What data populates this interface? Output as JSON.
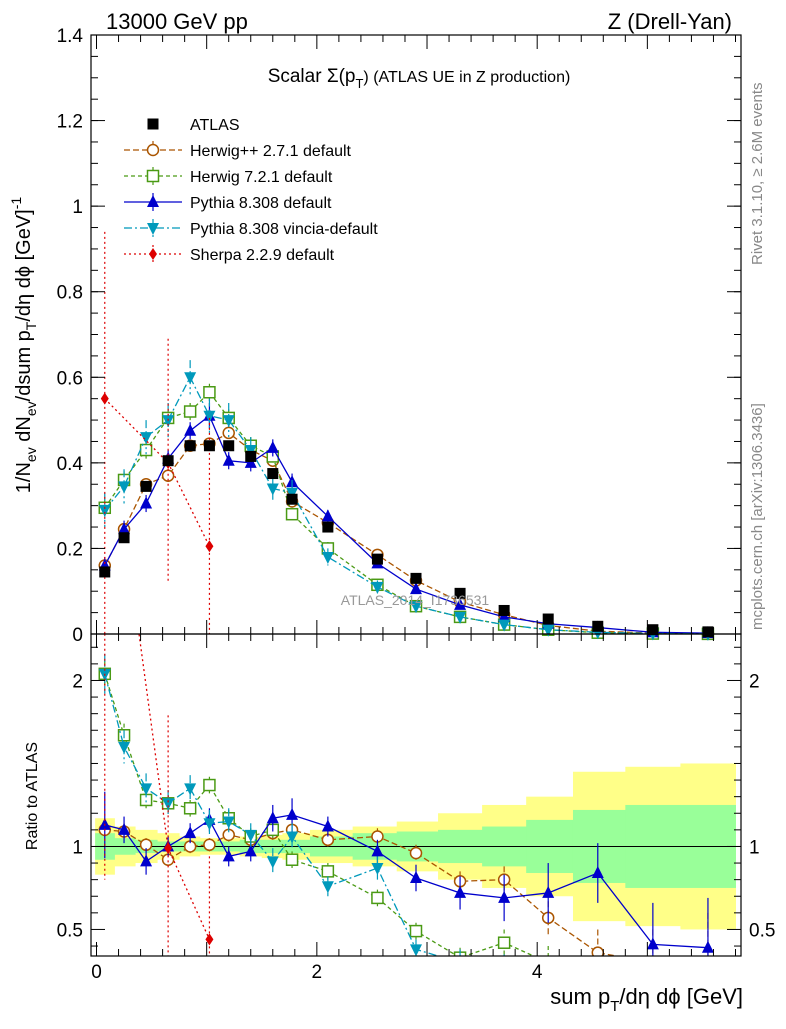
{
  "header": {
    "left": "13000 GeV pp",
    "right": "Z (Drell-Yan)"
  },
  "side_labels": {
    "rivet": "Rivet 3.1.10, ≥ 2.6M events",
    "mcplots": "mcplots.cern.ch [arXiv:1306.3436]"
  },
  "chart_data": {
    "type": "scatter",
    "title": "Scalar Σ(p_T) (ATLAS UE in Z production)",
    "title_parts": {
      "main": "Scalar Σ(p",
      "sub": "T",
      "rest": ") (ATLAS UE in Z production)"
    },
    "watermark": "ATLAS_2014_I1736531",
    "xlabel": "sum p_T/dη dϕ [GeV]",
    "xlabel_parts": {
      "a": "sum p",
      "sub": "T",
      "b": "/dη dϕ [GeV]"
    },
    "ylabel": "1/N_ev dN_ev/dsum p_T/dη dϕ [GeV]^-1",
    "ylabel_parts": {
      "a": "1/N",
      "sub1": "ev",
      "b": " dN",
      "sub2": "ev",
      "c": "/dsum p",
      "sub3": "T",
      "d": "/dη dϕ  [GeV]",
      "sup": "-1"
    },
    "ratio_ylabel": "Ratio to ATLAS",
    "xlim": [
      -0.05,
      5.85
    ],
    "ylim": [
      0,
      1.4
    ],
    "ratio_ylim": [
      0.34,
      2.28
    ],
    "x_ticks": [
      {
        "v": 0,
        "label": "0"
      },
      {
        "v": 2,
        "label": "2"
      },
      {
        "v": 4,
        "label": "4"
      }
    ],
    "y_ticks": [
      {
        "v": 0,
        "label": "0"
      },
      {
        "v": 0.2,
        "label": "0.2"
      },
      {
        "v": 0.4,
        "label": "0.4"
      },
      {
        "v": 0.6,
        "label": "0.6"
      },
      {
        "v": 0.8,
        "label": "0.8"
      },
      {
        "v": 1.0,
        "label": "1"
      },
      {
        "v": 1.2,
        "label": "1.2"
      },
      {
        "v": 1.4,
        "label": "1.4"
      }
    ],
    "ratio_ticks": [
      {
        "v": 0.5,
        "label": "0.5"
      },
      {
        "v": 1,
        "label": "1"
      },
      {
        "v": 2,
        "label": "2"
      }
    ],
    "x": [
      0.075,
      0.25,
      0.45,
      0.65,
      0.85,
      1.025,
      1.2,
      1.4,
      1.6,
      1.775,
      2.1,
      2.55,
      2.9,
      3.3,
      3.7,
      4.1,
      4.55,
      5.05,
      5.55
    ],
    "atlas": {
      "name": "ATLAS",
      "values": [
        0.145,
        0.225,
        0.345,
        0.405,
        0.44,
        0.44,
        0.44,
        0.415,
        0.375,
        0.315,
        0.25,
        0.175,
        0.13,
        0.095,
        0.055,
        0.035,
        0.018,
        0.01,
        0.005
      ],
      "band_inner": [
        0.08,
        0.05,
        0.04,
        0.03,
        0.03,
        0.03,
        0.03,
        0.04,
        0.04,
        0.04,
        0.06,
        0.08,
        0.09,
        0.1,
        0.12,
        0.16,
        0.22,
        0.25,
        0.25
      ],
      "band_outer": [
        0.17,
        0.12,
        0.1,
        0.08,
        0.06,
        0.05,
        0.05,
        0.06,
        0.07,
        0.08,
        0.1,
        0.12,
        0.15,
        0.2,
        0.25,
        0.3,
        0.45,
        0.48,
        0.5
      ]
    },
    "series": [
      {
        "name": "Herwig++ 2.7.1 default",
        "color": "#aa5500",
        "marker": "circle-open",
        "dash": "6,3",
        "values": [
          0.16,
          0.245,
          0.35,
          0.37,
          0.44,
          0.445,
          0.47,
          0.43,
          0.405,
          0.31,
          0.26,
          0.185,
          0.125,
          0.075,
          0.045,
          0.02,
          0.0065,
          0.0022,
          0.0008
        ],
        "ratio": [
          1.1,
          1.09,
          1.01,
          0.92,
          1.0,
          1.01,
          1.07,
          1.04,
          1.08,
          1.1,
          1.04,
          1.06,
          0.96,
          0.79,
          0.8,
          0.57,
          0.36,
          0.3,
          0.3
        ],
        "err": [
          0.012,
          0.012,
          0.012,
          0.012,
          0.012,
          0.012,
          0.012,
          0.012,
          0.012,
          0.012,
          0.012,
          0.01,
          0.01,
          0.008,
          0.006,
          0.005,
          0.004,
          0.002,
          0.001
        ],
        "ratio_err": [
          0.05,
          0.05,
          0.04,
          0.04,
          0.04,
          0.04,
          0.04,
          0.04,
          0.04,
          0.04,
          0.04,
          0.05,
          0.05,
          0.06,
          0.08,
          0.1,
          0.14,
          0.2,
          0.3
        ]
      },
      {
        "name": "Herwig 7.2.1 default",
        "color": "#4a9a14",
        "marker": "square-open",
        "dash": "4,3",
        "values": [
          0.295,
          0.36,
          0.43,
          0.505,
          0.52,
          0.565,
          0.505,
          0.44,
          0.415,
          0.28,
          0.2,
          0.115,
          0.065,
          0.04,
          0.022,
          0.01,
          0.003,
          0.001,
          0.0003
        ],
        "ratio": [
          2.04,
          1.67,
          1.28,
          1.26,
          1.23,
          1.37,
          1.17,
          1.06,
          1.1,
          0.92,
          0.85,
          0.69,
          0.49,
          0.33,
          0.42,
          0.3,
          0.2,
          0.1,
          0.1
        ],
        "err": [
          0.02,
          0.02,
          0.02,
          0.02,
          0.02,
          0.02,
          0.02,
          0.02,
          0.015,
          0.015,
          0.015,
          0.01,
          0.008,
          0.006,
          0.004,
          0.003,
          0.002,
          0.001,
          0.0005
        ],
        "ratio_err": [
          0.08,
          0.07,
          0.05,
          0.05,
          0.05,
          0.05,
          0.05,
          0.05,
          0.05,
          0.05,
          0.05,
          0.05,
          0.05,
          0.06,
          0.08,
          0.1,
          0.12,
          0.15,
          0.2
        ]
      },
      {
        "name": "Pythia 8.308 default",
        "color": "#0000cc",
        "marker": "triangle-up",
        "dash": "",
        "values": [
          0.16,
          0.245,
          0.305,
          0.41,
          0.475,
          0.51,
          0.405,
          0.4,
          0.435,
          0.355,
          0.275,
          0.165,
          0.105,
          0.068,
          0.04,
          0.024,
          0.015,
          0.004,
          0.002
        ],
        "ratio": [
          1.13,
          1.1,
          0.91,
          1.0,
          1.08,
          1.16,
          0.94,
          0.97,
          1.17,
          1.19,
          1.12,
          0.97,
          0.81,
          0.72,
          0.69,
          0.72,
          0.84,
          0.41,
          0.39
        ],
        "err": [
          0.02,
          0.02,
          0.02,
          0.02,
          0.02,
          0.03,
          0.02,
          0.02,
          0.02,
          0.02,
          0.015,
          0.01,
          0.008,
          0.006,
          0.005,
          0.004,
          0.004,
          0.002,
          0.001
        ],
        "ratio_err": [
          0.2,
          0.08,
          0.08,
          0.06,
          0.06,
          0.07,
          0.06,
          0.06,
          0.08,
          0.1,
          0.06,
          0.07,
          0.08,
          0.1,
          0.14,
          0.18,
          0.18,
          0.25,
          0.3
        ]
      },
      {
        "name": "Pythia 8.308 vincia-default",
        "color": "#0099bb",
        "marker": "triangle-down",
        "dash": "8,3,2,3",
        "values": [
          0.29,
          0.345,
          0.46,
          0.5,
          0.6,
          0.51,
          0.5,
          0.43,
          0.34,
          0.33,
          0.18,
          0.11,
          0.065,
          0.04,
          0.022,
          0.01,
          0.004,
          0.0012,
          0.0004
        ],
        "ratio": [
          2.04,
          1.6,
          1.35,
          1.26,
          1.35,
          1.14,
          1.15,
          1.07,
          0.91,
          1.06,
          0.76,
          0.87,
          0.38,
          0.3,
          0.25,
          0.2,
          0.2,
          0.1,
          0.1
        ],
        "err": [
          0.04,
          0.04,
          0.04,
          0.04,
          0.04,
          0.04,
          0.04,
          0.03,
          0.03,
          0.03,
          0.02,
          0.015,
          0.01,
          0.006,
          0.004,
          0.003,
          0.002,
          0.001,
          0.0005
        ],
        "ratio_err": [
          0.12,
          0.1,
          0.09,
          0.08,
          0.08,
          0.08,
          0.08,
          0.07,
          0.08,
          0.08,
          0.06,
          0.07,
          0.06,
          0.08,
          0.1,
          0.1,
          0.12,
          0.15,
          0.2
        ]
      },
      {
        "name": "Sherpa 2.2.9 default",
        "color": "#dd0000",
        "marker": "diamond",
        "dash": "2,3",
        "x": [
          0.075,
          0.65,
          1.025
        ],
        "values": [
          0.55,
          0.4,
          0.205
        ],
        "ratio": [
          3.8,
          0.99,
          0.44
        ],
        "err_low": [
          0.55,
          0.28,
          0.205
        ],
        "err_high": [
          0.39,
          0.29,
          0.3
        ],
        "ratio_err": [
          3.0,
          0.8,
          0.5
        ]
      }
    ]
  }
}
